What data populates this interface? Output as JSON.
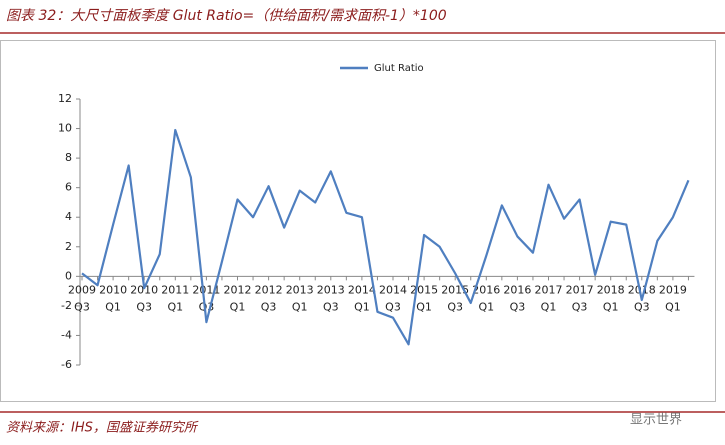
{
  "title": "图表 32：大尺寸面板季度 Glut Ratio=（供给面积/需求面积-1）*100",
  "source": "资料来源：IHS，国盛证券研究所",
  "watermark": "显示世界",
  "chart_data": {
    "type": "line",
    "categories": [
      "2009 Q3",
      null,
      "2010 Q1",
      null,
      "2010 Q3",
      null,
      "2011 Q1",
      null,
      "2011 Q3",
      null,
      "2012 Q1",
      null,
      "2012 Q3",
      null,
      "2013 Q1",
      null,
      "2013 Q3",
      null,
      "2014 Q1",
      null,
      "2014 Q3",
      null,
      "2015 Q1",
      null,
      "2015 Q3",
      null,
      "2016 Q1",
      null,
      "2016 Q3",
      null,
      "2017 Q1",
      null,
      "2017 Q3",
      null,
      "2018 Q1",
      null,
      "2018 Q3",
      null,
      "2019 Q1",
      null
    ],
    "series": [
      {
        "name": "Glut Ratio",
        "color": "#4f7fc0",
        "values": [
          0.2,
          -0.6,
          3.5,
          7.5,
          -0.8,
          1.5,
          9.9,
          6.7,
          -3.1,
          1.0,
          5.2,
          4.0,
          6.1,
          3.3,
          5.8,
          5.0,
          7.1,
          4.3,
          4.0,
          -2.4,
          -2.8,
          -4.6,
          2.8,
          2.0,
          0.2,
          -1.8,
          1.4,
          4.8,
          2.7,
          1.6,
          6.2,
          3.9,
          5.2,
          0.1,
          3.7,
          3.5,
          -1.6,
          2.4,
          4.0,
          6.5
        ]
      }
    ],
    "ylim": [
      -6,
      12
    ],
    "yticks": [
      -6,
      -4,
      -2,
      0,
      2,
      4,
      6,
      8,
      10,
      12
    ],
    "legend": "top"
  }
}
